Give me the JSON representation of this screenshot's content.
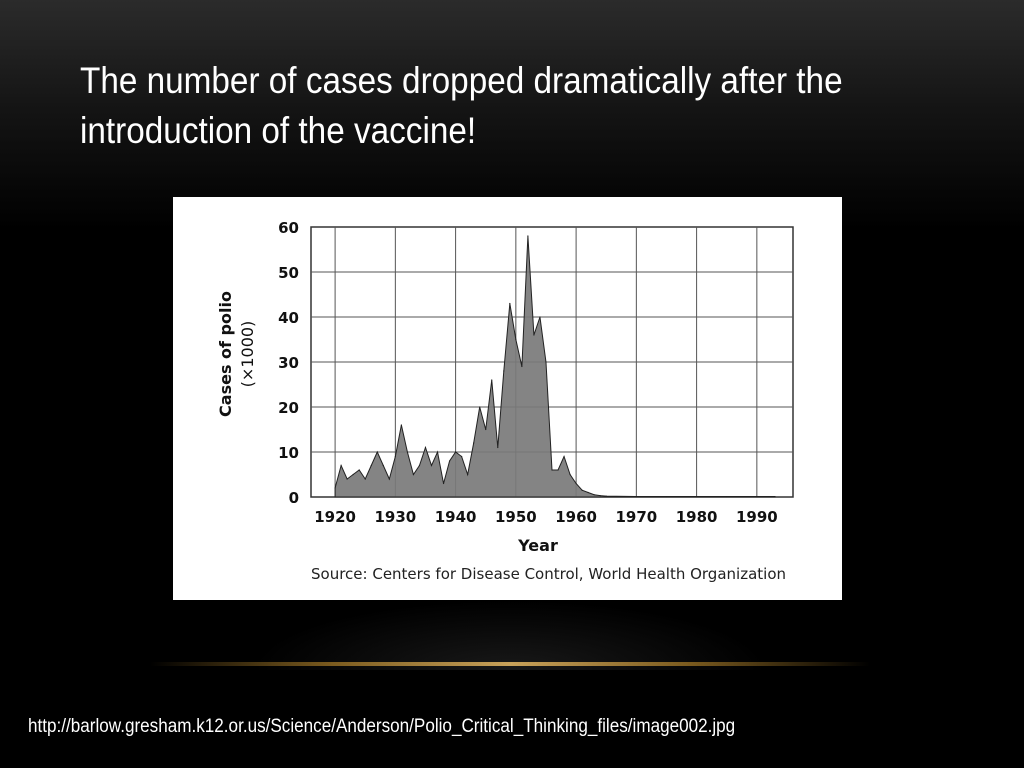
{
  "slide": {
    "title": "The number of cases dropped dramatically after the introduction of the vaccine!",
    "source_url": "http://barlow.gresham.k12.or.us/Science/Anderson/Polio_Critical_Thinking_files/image002.jpg"
  },
  "chart_data": {
    "type": "area",
    "xlabel": "Year",
    "ylabel": "Cases of polio",
    "ylabel_unit": "(×1000)",
    "source": "Source: Centers for Disease Control, World Health Organization",
    "xlim": [
      1916,
      1996
    ],
    "ylim": [
      0,
      60
    ],
    "x_ticks": [
      1920,
      1930,
      1940,
      1950,
      1960,
      1970,
      1980,
      1990
    ],
    "y_ticks": [
      0,
      10,
      20,
      30,
      40,
      50,
      60
    ],
    "grid": true,
    "fill_color": "#7a7a7a",
    "x": [
      1920,
      1921,
      1922,
      1923,
      1924,
      1925,
      1926,
      1927,
      1928,
      1929,
      1930,
      1931,
      1932,
      1933,
      1934,
      1935,
      1936,
      1937,
      1938,
      1939,
      1940,
      1941,
      1942,
      1943,
      1944,
      1945,
      1946,
      1947,
      1948,
      1949,
      1950,
      1951,
      1952,
      1953,
      1954,
      1955,
      1956,
      1957,
      1958,
      1959,
      1960,
      1961,
      1962,
      1963,
      1964,
      1965,
      1970,
      1975,
      1980,
      1985,
      1990,
      1993
    ],
    "values": [
      2,
      7,
      4,
      5,
      6,
      4,
      7,
      10,
      7,
      4,
      9,
      16,
      10,
      5,
      7,
      11,
      7,
      10,
      3,
      8,
      10,
      9,
      5,
      12,
      20,
      15,
      26,
      11,
      28,
      43,
      35,
      29,
      58,
      36,
      40,
      30,
      6,
      6,
      9,
      5,
      3,
      1.5,
      1,
      0.5,
      0.3,
      0.2,
      0.1,
      0.1,
      0.1,
      0.1,
      0.1,
      0.1
    ]
  }
}
